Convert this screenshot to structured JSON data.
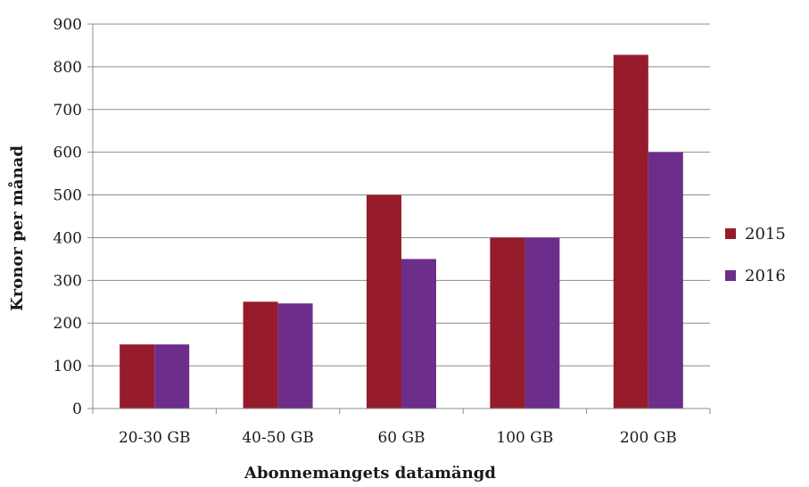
{
  "chart_data": {
    "type": "bar",
    "title": "",
    "xlabel": "Abonnemangets datamängd",
    "ylabel": "Kronor per månad",
    "categories": [
      "20-30 GB",
      "40-50 GB",
      "60 GB",
      "100 GB",
      "200 GB"
    ],
    "series": [
      {
        "name": "2015",
        "values": [
          150,
          250,
          500,
          400,
          828
        ],
        "color": "#961b2b"
      },
      {
        "name": "2016",
        "values": [
          150,
          246,
          350,
          400,
          600
        ],
        "color": "#6d2d8a"
      }
    ],
    "ylim": [
      0,
      900
    ],
    "yticks": [
      0,
      100,
      200,
      300,
      400,
      500,
      600,
      700,
      800,
      900
    ],
    "grid": true,
    "legend_position": "right"
  }
}
